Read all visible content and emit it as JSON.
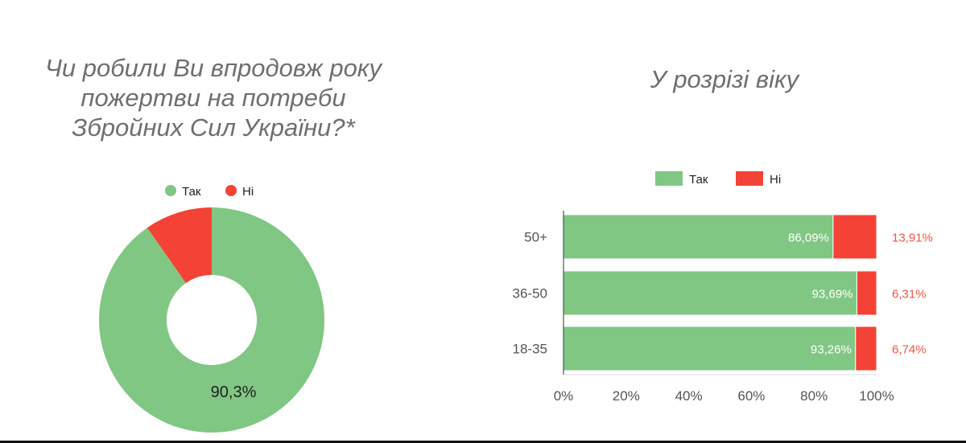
{
  "left_title": {
    "line1": "Чи робили Ви впродовж року",
    "line2": "пожертви на потреби",
    "line3": "Збройних Сил України?*"
  },
  "right_title": "У розрізі віку",
  "colors": {
    "yes": "#81c784",
    "no": "#f44336",
    "no_label": "#f0554a"
  },
  "chart_data": [
    {
      "type": "pie",
      "donut": true,
      "legend_position": "top",
      "categories": [
        "Так",
        "Ні"
      ],
      "values": [
        90.3,
        9.7
      ],
      "data_labels": [
        "90,3%",
        ""
      ]
    },
    {
      "type": "bar",
      "orientation": "horizontal",
      "stacked": true,
      "legend_position": "top",
      "categories": [
        "50+",
        "36-50",
        "18-35"
      ],
      "series": [
        {
          "name": "Так",
          "values": [
            86.09,
            93.69,
            93.26
          ],
          "labels": [
            "86,09%",
            "93,69%",
            "93,26%"
          ]
        },
        {
          "name": "Ні",
          "values": [
            13.91,
            6.31,
            6.74
          ],
          "labels": [
            "13,91%",
            "6,31%",
            "6,74%"
          ]
        }
      ],
      "xlim": [
        0,
        100
      ],
      "x_ticks": [
        "0%",
        "20%",
        "40%",
        "60%",
        "80%",
        "100%"
      ],
      "grid": false
    }
  ]
}
